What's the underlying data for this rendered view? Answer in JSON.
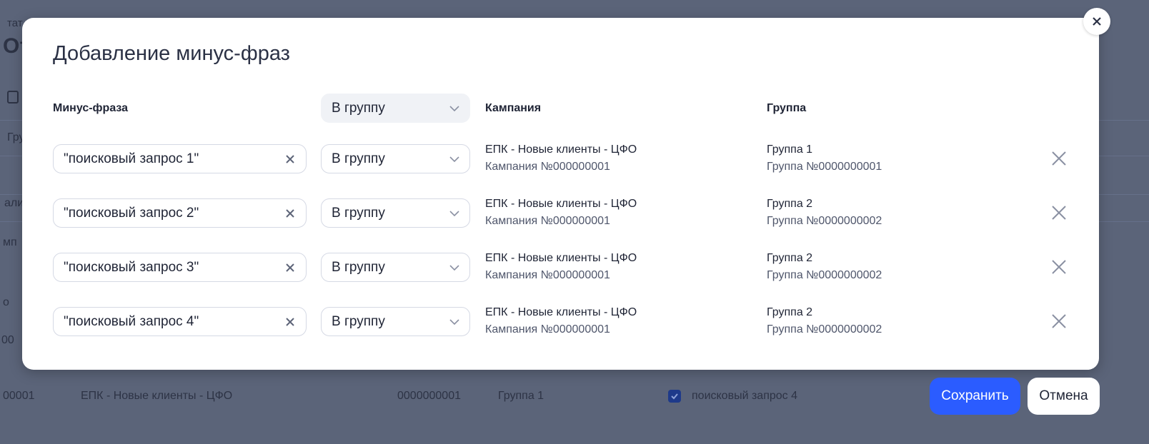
{
  "background": {
    "fragments": [
      "тат",
      "От",
      "Гру",
      "али",
      "мп",
      "о",
      "00"
    ],
    "row": {
      "id": "00001",
      "campaign": "ЕПК - Новые клиенты - ЦФО",
      "number": "0000000001",
      "group": "Группа 1",
      "phrase": "поисковый запрос 4",
      "checked": true
    }
  },
  "modal": {
    "title": "Добавление минус-фраз",
    "headers": {
      "phrase": "Минус-фраза",
      "target_select": "В группу",
      "campaign": "Кампания",
      "group": "Группа"
    },
    "rows": [
      {
        "phrase": "\"поисковый запрос 1\"",
        "target": "В группу",
        "campaign": "ЕПК - Новые клиенты - ЦФО",
        "campaign_id": "Кампания №000000001",
        "group": "Группа 1",
        "group_id": "Группа №0000000001"
      },
      {
        "phrase": "\"поисковый запрос 2\"",
        "target": "В группу",
        "campaign": "ЕПК - Новые клиенты - ЦФО",
        "campaign_id": "Кампания №000000001",
        "group": "Группа 2",
        "group_id": "Группа №0000000002"
      },
      {
        "phrase": "\"поисковый запрос 3\"",
        "target": "В группу",
        "campaign": "ЕПК - Новые клиенты - ЦФО",
        "campaign_id": "Кампания №000000001",
        "group": "Группа 2",
        "group_id": "Группа №0000000002"
      },
      {
        "phrase": "\"поисковый запрос 4\"",
        "target": "В группу",
        "campaign": "ЕПК - Новые клиенты - ЦФО",
        "campaign_id": "Кампания №000000001",
        "group": "Группа 2",
        "group_id": "Группа №0000000002"
      }
    ]
  },
  "buttons": {
    "save": "Сохранить",
    "cancel": "Отмена"
  },
  "colors": {
    "primary": "#2b5cff",
    "overlay": "#5b6479"
  }
}
